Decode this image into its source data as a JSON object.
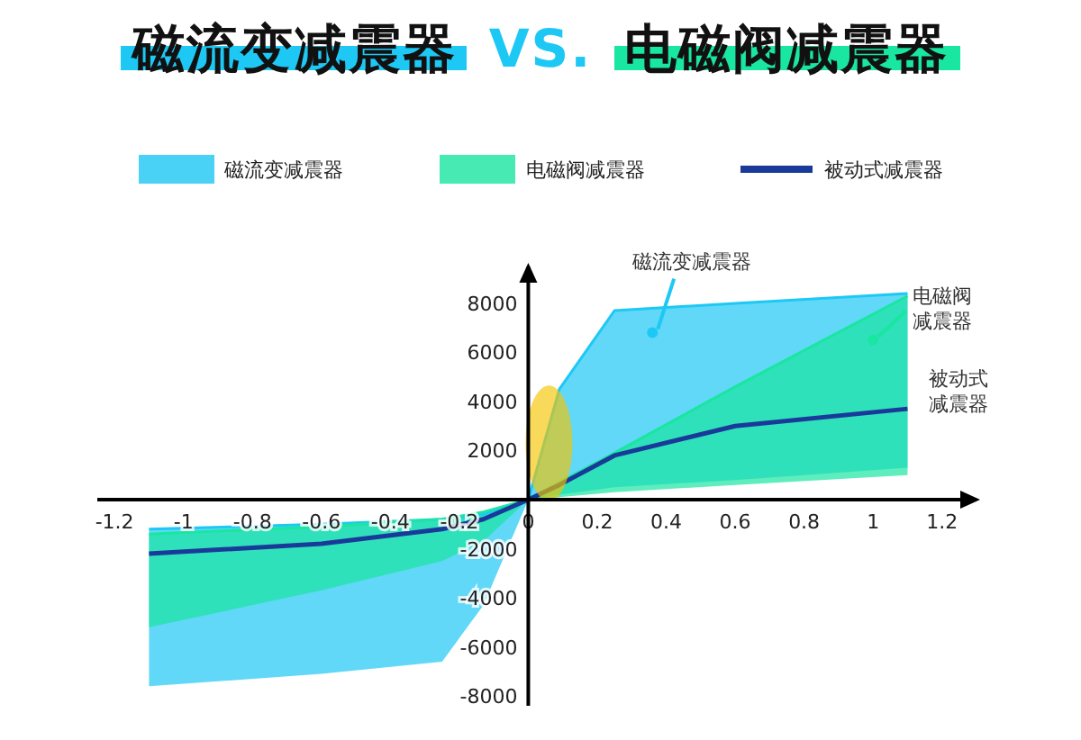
{
  "chart_data": {
    "type": "line",
    "title": "磁流变减震器 VS. 电磁阀减震器",
    "x": [
      -1.1,
      -0.6,
      -0.25,
      -0.13,
      0,
      0.09,
      0.25,
      0.6,
      1.1
    ],
    "series": [
      {
        "name": "磁流变减震器",
        "color": "#1ec8f5",
        "values": [
          -1200,
          -1000,
          -800,
          -600,
          0,
          4500,
          7700,
          8000,
          8400
        ],
        "upper": [
          -1200,
          -1000,
          -800,
          -600,
          0,
          4500,
          7700,
          8000,
          8400
        ],
        "lower": [
          -7600,
          -7100,
          -6600,
          -4300,
          0,
          200,
          500,
          800,
          1300
        ]
      },
      {
        "name": "电磁阀减震器",
        "color": "#19e6a0",
        "values": [
          -1400,
          -1100,
          -800,
          -500,
          0,
          700,
          1900,
          4600,
          8300
        ],
        "upper": [
          -1400,
          -1100,
          -800,
          -500,
          0,
          700,
          1900,
          4600,
          8300
        ],
        "lower": [
          -5200,
          -3700,
          -2500,
          -1700,
          0,
          100,
          300,
          600,
          1000
        ]
      },
      {
        "name": "被动式减震器",
        "color": "#1a3a9a",
        "values": [
          -2200,
          -1800,
          -1200,
          -800,
          0,
          600,
          1800,
          3000,
          3700
        ]
      }
    ],
    "xlim": [
      -1.25,
      1.3
    ],
    "xticks": [
      -1.2,
      -1,
      -0.8,
      -0.6,
      -0.4,
      -0.2,
      0,
      0.2,
      0.4,
      0.6,
      0.8,
      1,
      1.2
    ],
    "ylim": [
      -8400,
      9500
    ],
    "yticks": [
      -8000,
      -6000,
      -4000,
      -2000,
      2000,
      4000,
      6000,
      8000
    ],
    "grid": false,
    "legend": "top",
    "annotations": [
      {
        "text": "磁流变减震器",
        "x": 0.36,
        "y": 6800
      },
      {
        "text": "电磁阀减震器",
        "x": 1.0,
        "y": 6500
      },
      {
        "text": "被动式减震器",
        "x": 1.1,
        "y": 3700
      }
    ]
  }
}
